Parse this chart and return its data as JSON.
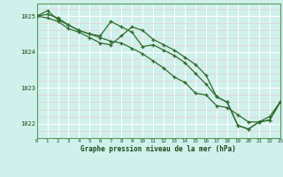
{
  "xlabel": "Graphe pression niveau de la mer (hPa)",
  "bg_color": "#cff0eb",
  "grid_major_color": "#ffffff",
  "grid_minor_color": "#ddf5f0",
  "line_color": "#2d6a2d",
  "marker": "+",
  "ylim": [
    1021.6,
    1025.35
  ],
  "xlim": [
    0,
    23
  ],
  "yticks": [
    1022,
    1023,
    1024,
    1025
  ],
  "xticks": [
    0,
    1,
    2,
    3,
    4,
    5,
    6,
    7,
    8,
    9,
    10,
    11,
    12,
    13,
    14,
    15,
    16,
    17,
    18,
    19,
    20,
    21,
    22,
    23
  ],
  "series": [
    [
      1025.0,
      1025.15,
      1024.9,
      1024.75,
      1024.6,
      1024.5,
      1024.45,
      1024.85,
      1024.7,
      1024.55,
      1024.15,
      1024.2,
      1024.05,
      1023.9,
      1023.7,
      1023.4,
      1023.1,
      1022.75,
      1022.6,
      1021.95,
      1021.85,
      1022.05,
      1022.1,
      1022.6
    ],
    [
      1025.0,
      1024.95,
      1024.85,
      1024.65,
      1024.55,
      1024.4,
      1024.25,
      1024.2,
      1024.45,
      1024.7,
      1024.6,
      1024.35,
      1024.2,
      1024.05,
      1023.85,
      1023.65,
      1023.35,
      1022.75,
      1022.6,
      1021.95,
      1021.85,
      1022.05,
      1022.1,
      1022.6
    ],
    [
      1025.0,
      1025.05,
      1024.95,
      1024.75,
      1024.6,
      1024.5,
      1024.4,
      1024.3,
      1024.25,
      1024.1,
      1023.95,
      1023.75,
      1023.55,
      1023.3,
      1023.15,
      1022.85,
      1022.8,
      1022.5,
      1022.45,
      1022.25,
      1022.05,
      1022.05,
      1022.2,
      1022.6
    ]
  ]
}
